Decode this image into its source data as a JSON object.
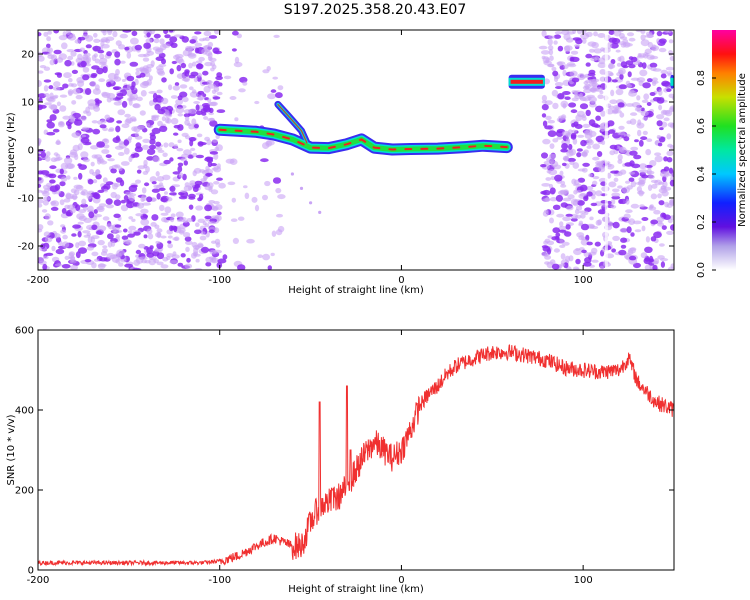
{
  "title": "S197.2025.358.20.43.E07",
  "colors": {
    "noise": "#8b2cf0",
    "noise_light": "#c9a4f5",
    "trace_outer": "#3a2cf0",
    "trace_mid": "#00e0d0",
    "trace_inner": "#20e040",
    "trace_core": "#f02020",
    "snr_line": "#f03030"
  },
  "chart_data": [
    {
      "type": "heatmap",
      "title": "S197.2025.358.20.43.E07",
      "xlabel": "Height of straight line (km)",
      "ylabel": "Frequency (Hz)",
      "xlim": [
        -200,
        150
      ],
      "ylim": [
        -25,
        25
      ],
      "x_ticks": [
        "-200",
        "-100",
        "0",
        "100"
      ],
      "y_ticks": [
        "20",
        "10",
        "0",
        "-10",
        "-20"
      ],
      "colorbar": {
        "label": "Normalized spectral amplitude",
        "range": [
          0,
          1
        ],
        "ticks": [
          "0.0",
          "0.2",
          "0.4",
          "0.6",
          "0.8"
        ]
      },
      "noise_regions": [
        {
          "x_from": -200,
          "x_to": -100,
          "density": "dense"
        },
        {
          "x_from": -100,
          "x_to": -65,
          "density": "sparse"
        },
        {
          "x_from": 78,
          "x_to": 150,
          "density": "dense"
        }
      ],
      "trace": [
        {
          "x": -100,
          "y": 4.2
        },
        {
          "x": -90,
          "y": 4.0
        },
        {
          "x": -80,
          "y": 3.8
        },
        {
          "x": -70,
          "y": 3.2
        },
        {
          "x": -60,
          "y": 2.2
        },
        {
          "x": -50,
          "y": 0.5
        },
        {
          "x": -40,
          "y": 0.4
        },
        {
          "x": -30,
          "y": 1.2
        },
        {
          "x": -22,
          "y": 2.2
        },
        {
          "x": -15,
          "y": 0.5
        },
        {
          "x": -5,
          "y": 0.1
        },
        {
          "x": 5,
          "y": 0.2
        },
        {
          "x": 20,
          "y": 0.3
        },
        {
          "x": 35,
          "y": 0.6
        },
        {
          "x": 45,
          "y": 0.9
        },
        {
          "x": 58,
          "y": 0.6
        }
      ],
      "branches": [
        {
          "x": -68,
          "y": 9.5
        },
        {
          "x": -62,
          "y": 7.0
        },
        {
          "x": -55,
          "y": 4.0
        },
        {
          "x": -52,
          "y": 1.5
        }
      ],
      "tone_segments": [
        {
          "x_from": 59,
          "x_to": 79,
          "y": 14.2
        },
        {
          "x_from": 148,
          "x_to": 150,
          "y": 14.2
        }
      ]
    },
    {
      "type": "line",
      "xlabel": "Height of straight line (km)",
      "ylabel": "SNR (10 * v/v)",
      "xlim": [
        -200,
        150
      ],
      "ylim": [
        0,
        600
      ],
      "x_ticks": [
        "-200",
        "-100",
        "0",
        "100"
      ],
      "y_ticks": [
        "0",
        "200",
        "400",
        "600"
      ],
      "series": [
        {
          "x": [
            -200,
            -150,
            -110,
            -100,
            -90,
            -80,
            -70,
            -60,
            -55,
            -50,
            -45,
            -40,
            -35,
            -30,
            -25,
            -20,
            -15,
            -10,
            -5,
            0,
            5,
            10,
            15,
            20,
            25,
            30,
            40,
            50,
            60,
            70,
            80,
            90,
            100,
            110,
            120,
            125,
            130,
            140,
            150
          ],
          "values": [
            18,
            18,
            18,
            22,
            35,
            60,
            80,
            60,
            60,
            120,
            160,
            170,
            180,
            210,
            250,
            290,
            320,
            300,
            280,
            300,
            350,
            410,
            440,
            460,
            490,
            510,
            530,
            545,
            545,
            535,
            525,
            505,
            500,
            495,
            500,
            530,
            470,
            420,
            400
          ]
        }
      ],
      "spikes": [
        {
          "x": -45,
          "y": 420
        },
        {
          "x": -38,
          "y": 200
        },
        {
          "x": -30,
          "y": 460
        },
        {
          "x": -28,
          "y": 300
        }
      ]
    }
  ]
}
